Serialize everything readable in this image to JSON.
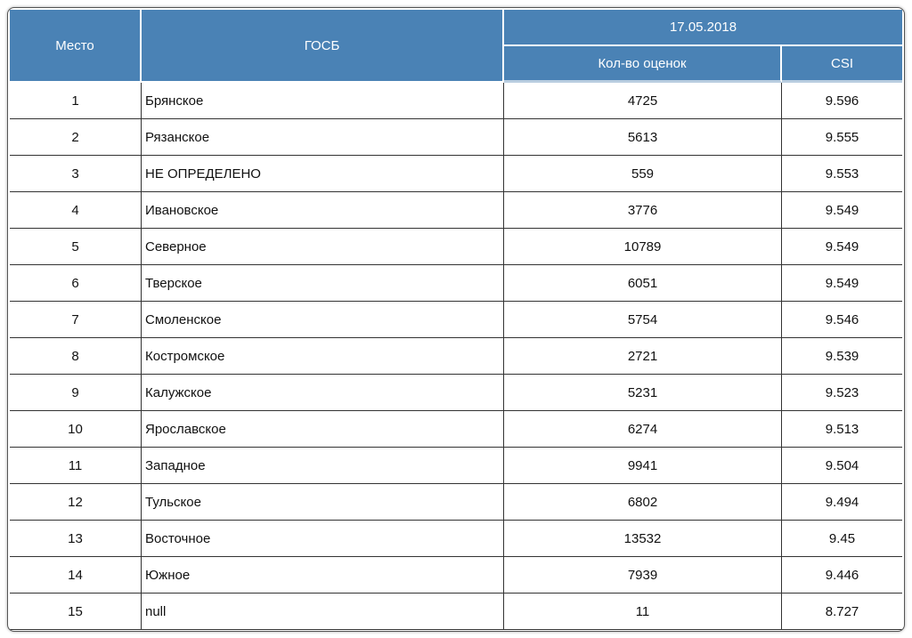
{
  "table": {
    "headers": {
      "place": "Место",
      "gosb": "ГОСБ",
      "date": "17.05.2018",
      "count": "Кол-во оценок",
      "csi": "CSI"
    },
    "rows": [
      {
        "place": "1",
        "name": "Брянское",
        "count": "4725",
        "csi": "9.596"
      },
      {
        "place": "2",
        "name": "Рязанское",
        "count": "5613",
        "csi": "9.555"
      },
      {
        "place": "3",
        "name": "НЕ ОПРЕДЕЛЕНО",
        "count": "559",
        "csi": "9.553"
      },
      {
        "place": "4",
        "name": "Ивановское",
        "count": "3776",
        "csi": "9.549"
      },
      {
        "place": "5",
        "name": "Северное",
        "count": "10789",
        "csi": "9.549"
      },
      {
        "place": "6",
        "name": "Тверское",
        "count": "6051",
        "csi": "9.549"
      },
      {
        "place": "7",
        "name": "Смоленское",
        "count": "5754",
        "csi": "9.546"
      },
      {
        "place": "8",
        "name": "Костромское",
        "count": "2721",
        "csi": "9.539"
      },
      {
        "place": "9",
        "name": "Калужское",
        "count": "5231",
        "csi": "9.523"
      },
      {
        "place": "10",
        "name": "Ярославское",
        "count": "6274",
        "csi": "9.513"
      },
      {
        "place": "11",
        "name": "Западное",
        "count": "9941",
        "csi": "9.504"
      },
      {
        "place": "12",
        "name": "Тульское",
        "count": "6802",
        "csi": "9.494"
      },
      {
        "place": "13",
        "name": "Восточное",
        "count": "13532",
        "csi": "9.45"
      },
      {
        "place": "14",
        "name": "Южное",
        "count": "7939",
        "csi": "9.446"
      },
      {
        "place": "15",
        "name": "null",
        "count": "11",
        "csi": "8.727"
      }
    ]
  },
  "colors": {
    "header_bg": "#4a82b5",
    "header_text": "#ffffff",
    "grid_line": "#333333"
  }
}
